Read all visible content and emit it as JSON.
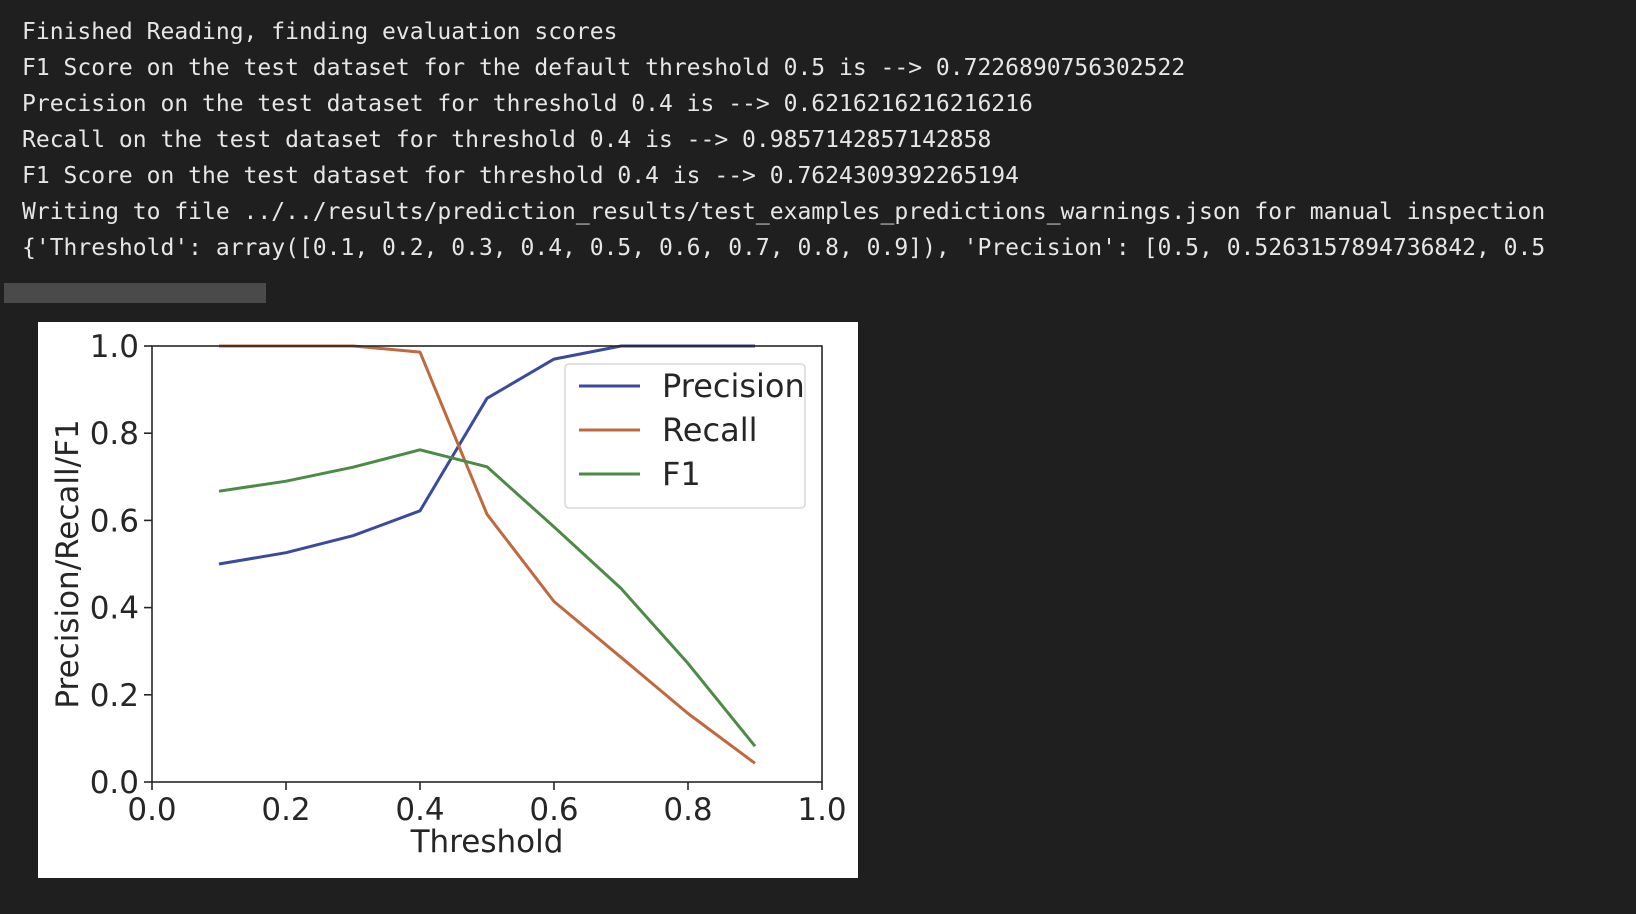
{
  "output": {
    "lines": [
      "Finished Reading, finding evaluation scores",
      "F1 Score on the test dataset for the default threshold 0.5 is --> 0.7226890756302522",
      "Precision on the test dataset for threshold 0.4 is --> 0.6216216216216216",
      "Recall on the test dataset for threshold 0.4 is --> 0.9857142857142858",
      "F1 Score on the test dataset for threshold 0.4 is --> 0.7624309392265194",
      "Writing to file ../../results/prediction_results/test_examples_predictions_warnings.json for manual inspection",
      "{'Threshold': array([0.1, 0.2, 0.3, 0.4, 0.5, 0.6, 0.7, 0.8, 0.9]), 'Precision': [0.5, 0.5263157894736842, 0.5"
    ]
  },
  "chart_data": {
    "type": "line",
    "title": "",
    "xlabel": "Threshold",
    "ylabel": "Precision/Recall/F1",
    "xlim": [
      0.0,
      1.0
    ],
    "ylim": [
      0.0,
      1.0
    ],
    "xticks": [
      "0.0",
      "0.2",
      "0.4",
      "0.6",
      "0.8",
      "1.0"
    ],
    "yticks": [
      "0.0",
      "0.2",
      "0.4",
      "0.6",
      "0.8",
      "1.0"
    ],
    "grid": false,
    "legend_position": "top-right",
    "x": [
      0.1,
      0.2,
      0.3,
      0.4,
      0.5,
      0.6,
      0.7,
      0.8,
      0.9
    ],
    "series": [
      {
        "name": "Precision",
        "color": "#3a4a9c",
        "values": [
          0.5,
          0.526,
          0.565,
          0.622,
          0.88,
          0.97,
          1.0,
          1.0,
          1.0
        ]
      },
      {
        "name": "Recall",
        "color": "#c0683e",
        "values": [
          1.0,
          1.0,
          1.0,
          0.986,
          0.614,
          0.414,
          0.286,
          0.157,
          0.043
        ]
      },
      {
        "name": "F1",
        "color": "#4b8b46",
        "values": [
          0.667,
          0.69,
          0.722,
          0.762,
          0.723,
          0.585,
          0.444,
          0.272,
          0.082
        ]
      }
    ]
  }
}
